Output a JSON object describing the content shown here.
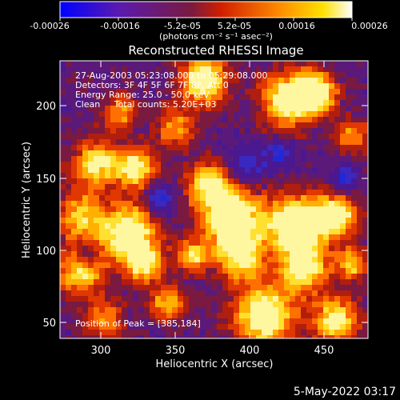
{
  "colorbar": {
    "ticks": [
      "-0.00026",
      "-0.00016",
      "-5.2e-05",
      "5.2e-05",
      "0.00016",
      "0.00026"
    ],
    "units": "(photons cm⁻² s⁻¹ asec⁻²)",
    "colors": [
      "#0000ff",
      "#5a1ab0",
      "#8a1c2a",
      "#e01e00",
      "#ff8a00",
      "#ffe000",
      "#ffffff"
    ]
  },
  "title": "Reconstructed RHESSI Image",
  "annotations": {
    "time": "27-Aug-2003 05:23:08.000 to 05:29:08.000",
    "detectors": "Detectors: 3F 4F 5F 6F 7F 8F, Att 0",
    "energy": "Energy Range: 25.0 - 50.0 keV",
    "clean": "Clean     Total counts: 5.20E+03",
    "peak": "Position of Peak = [385,184]"
  },
  "axes": {
    "xlabel": "Heliocentric X (arcsec)",
    "ylabel": "Heliocentric Y (arcsec)",
    "xticks": [
      "300",
      "350",
      "400",
      "450"
    ],
    "yticks": [
      "50",
      "100",
      "150",
      "200"
    ],
    "xrange": [
      270,
      462
    ],
    "yrange": [
      38,
      230
    ]
  },
  "timestamp": "5-May-2022 03:17"
}
